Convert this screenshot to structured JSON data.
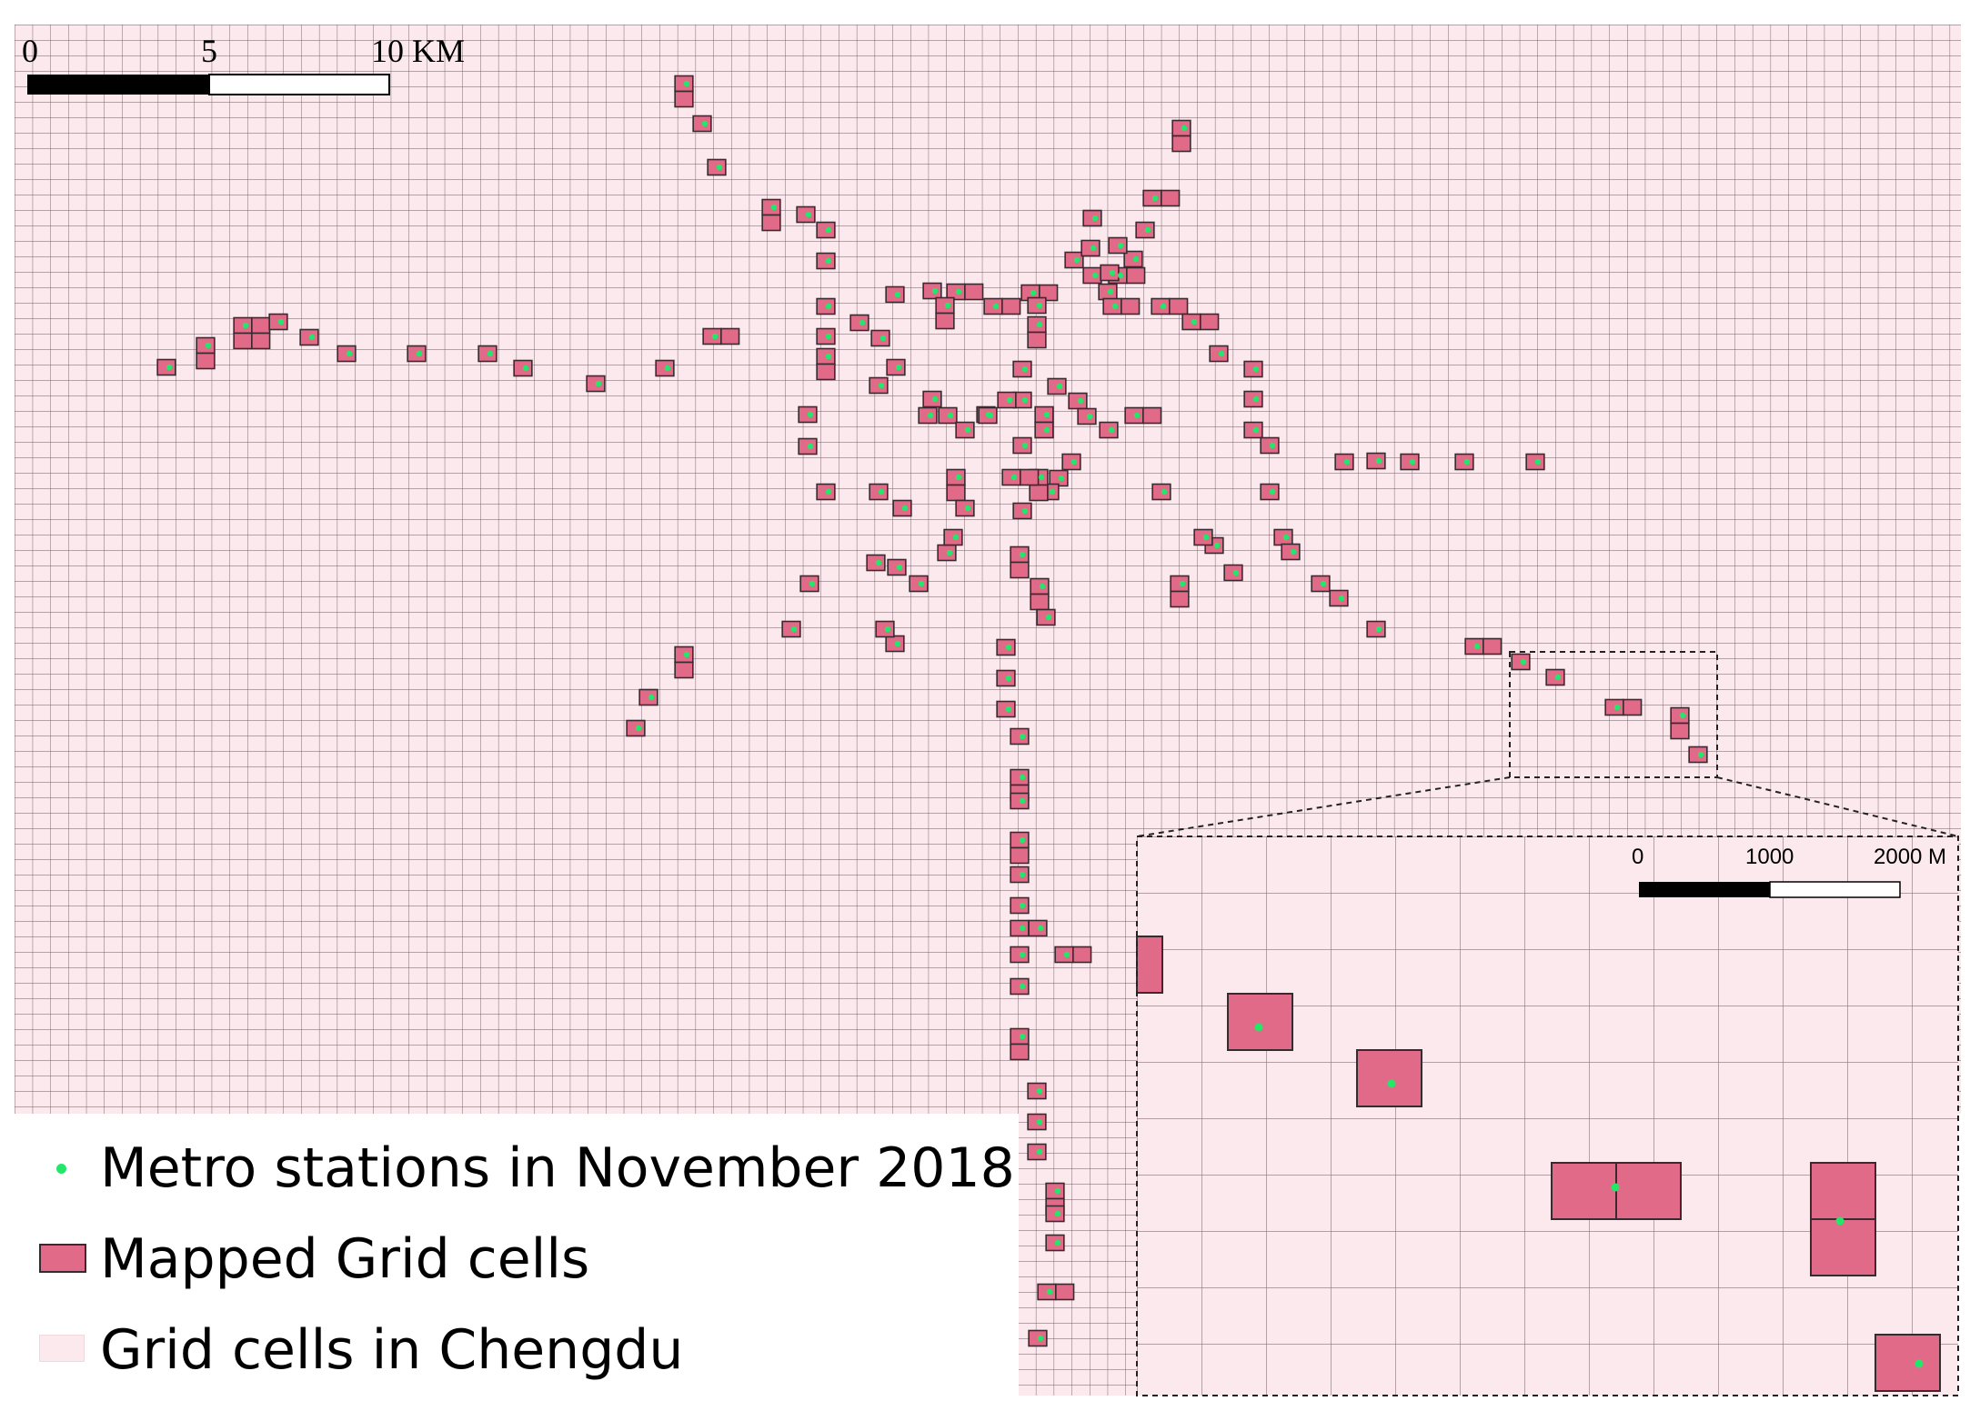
{
  "map": {
    "main_scale": {
      "labels": [
        "0",
        "5",
        "10 KM"
      ]
    },
    "inset_scale": {
      "labels": [
        "0",
        "1000",
        "2000 M"
      ]
    }
  },
  "legend": {
    "items": [
      {
        "label": "Metro stations in November 2018",
        "symbol": "dot"
      },
      {
        "label": "Mapped Grid cells",
        "symbol": "mapped-cell"
      },
      {
        "label": "Grid cells in Chengdu",
        "symbol": "grid-cell"
      }
    ]
  },
  "colors": {
    "grid_fill": "#fbe9ed",
    "grid_line": "#6e5a62",
    "mapped_fill": "#e06a87",
    "mapped_stroke": "#3a2a30",
    "station": "#22e86a"
  }
}
